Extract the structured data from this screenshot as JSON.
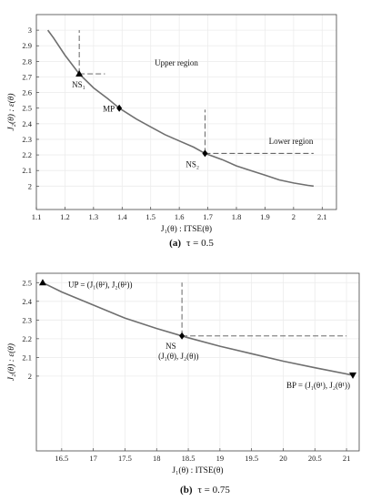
{
  "chart_data": [
    {
      "type": "line",
      "xlabel": "J₁(θ) : ITSE(θ)",
      "ylabel": "J₂(θ) : ε(θ)",
      "xlim": [
        1.1,
        2.15
      ],
      "ylim": [
        1.85,
        3.1
      ],
      "xticks": [
        "1.1",
        "1.2",
        "1.3",
        "1.4",
        "1.5",
        "1.6",
        "1.7",
        "1.8",
        "1.9",
        "2",
        "2.1"
      ],
      "yticks": [
        "2",
        "2.1",
        "2.2",
        "2.3",
        "2.4",
        "2.5",
        "2.6",
        "2.7",
        "2.8",
        "2.9",
        "3"
      ],
      "grid": true,
      "caption_label": "(a)",
      "caption_text": "τ = 0.5",
      "series": [
        {
          "color": "#6f6f6f",
          "x": [
            1.14,
            1.16,
            1.2,
            1.25,
            1.3,
            1.35,
            1.39,
            1.45,
            1.5,
            1.55,
            1.6,
            1.65,
            1.69,
            1.75,
            1.8,
            1.85,
            1.9,
            1.95,
            2.0,
            2.05,
            2.07
          ],
          "y": [
            3.0,
            2.95,
            2.84,
            2.72,
            2.63,
            2.56,
            2.5,
            2.43,
            2.38,
            2.33,
            2.29,
            2.25,
            2.21,
            2.17,
            2.13,
            2.1,
            2.07,
            2.04,
            2.02,
            2.005,
            2.0
          ]
        }
      ],
      "points": [
        {
          "label": "NS₁",
          "x": 1.25,
          "y": 2.72,
          "marker": "triangle"
        },
        {
          "label": "MP",
          "x": 1.39,
          "y": 2.5,
          "marker": "diamond"
        },
        {
          "label": "NS₂",
          "x": 1.69,
          "y": 2.21,
          "marker": "diamond"
        }
      ],
      "guides": [
        {
          "x": 1.25,
          "y": 2.72,
          "x_end": 1.34,
          "y_end": 3.0
        },
        {
          "x": 1.69,
          "y": 2.21,
          "x_end": 2.07,
          "y_end": 2.49
        }
      ],
      "annotations": [
        "Upper region",
        "Lower region"
      ]
    },
    {
      "type": "line",
      "xlabel": "J₁(θ) : ITSE(θ)",
      "ylabel": "J₂(θ) : ε(θ)",
      "xlim": [
        16.1,
        21.2
      ],
      "ylim": [
        1.6,
        2.55
      ],
      "xticks": [
        "16.5",
        "17",
        "17.5",
        "18",
        "18.5",
        "19",
        "19.5",
        "20",
        "20.5",
        "21"
      ],
      "yticks": [
        "2",
        "2.1",
        "2.2",
        "2.3",
        "2.4",
        "2.5"
      ],
      "grid": true,
      "caption_label": "(b)",
      "caption_text": "τ = 0.75",
      "series": [
        {
          "color": "#6f6f6f",
          "x": [
            16.2,
            16.5,
            17.0,
            17.5,
            18.0,
            18.4,
            18.5,
            19.0,
            19.5,
            20.0,
            20.5,
            21.1
          ],
          "y": [
            2.5,
            2.45,
            2.38,
            2.31,
            2.255,
            2.215,
            2.205,
            2.16,
            2.12,
            2.08,
            2.045,
            2.005
          ]
        }
      ],
      "points": [
        {
          "label": "UP = (J₁(θ²), J₂(θ²))",
          "x": 16.2,
          "y": 2.5,
          "marker": "triangle"
        },
        {
          "label": "NS",
          "label2": "(J₁(θ), J₂(θ))",
          "x": 18.4,
          "y": 2.215,
          "marker": "diamond"
        },
        {
          "label": "BP = (J₁(θ¹), J₂(θ¹))",
          "x": 21.1,
          "y": 2.005,
          "marker": "triangle-down"
        }
      ],
      "guides": [
        {
          "x": 18.4,
          "y": 2.215,
          "x_end": 21.0,
          "y_end": 2.5
        }
      ],
      "annotations": []
    }
  ]
}
